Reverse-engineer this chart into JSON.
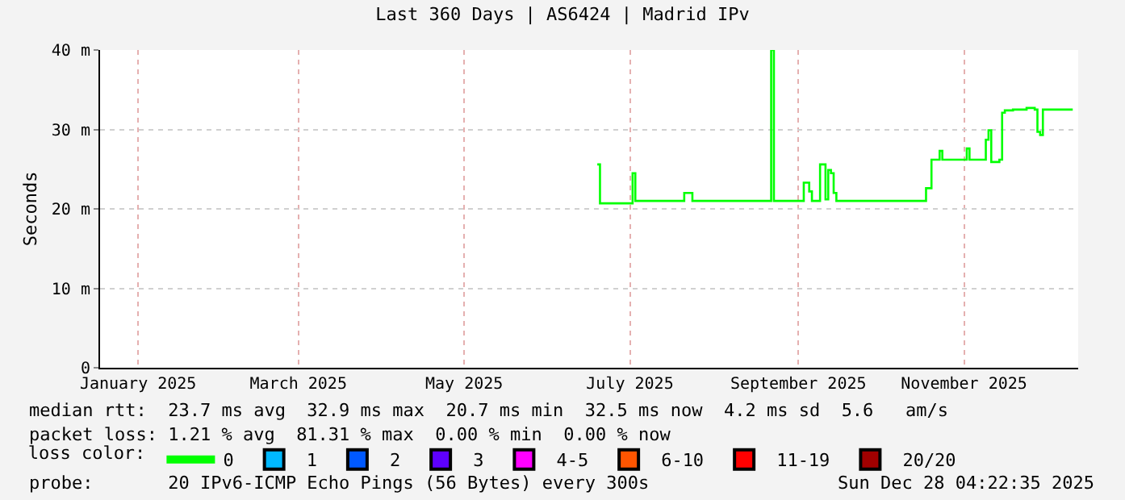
{
  "chart_data": {
    "type": "step",
    "title": "Last 360 Days | AS6424 | Madrid IPv",
    "ylabel": "Seconds",
    "x": [
      "2025-07-04",
      "2025-07-05",
      "2025-07-17",
      "2025-07-18",
      "2025-08-05",
      "2025-08-08",
      "2025-09-06",
      "2025-09-07",
      "2025-09-08",
      "2025-09-18",
      "2025-09-20",
      "2025-09-21",
      "2025-09-24",
      "2025-09-26",
      "2025-09-27",
      "2025-09-28",
      "2025-09-29",
      "2025-09-30",
      "2025-11-02",
      "2025-11-04",
      "2025-11-07",
      "2025-11-08",
      "2025-11-17",
      "2025-11-18",
      "2025-11-23",
      "2025-11-24",
      "2025-11-25",
      "2025-11-26",
      "2025-11-29",
      "2025-11-30",
      "2025-12-01",
      "2025-12-04",
      "2025-12-09",
      "2025-12-12",
      "2025-12-13",
      "2025-12-14",
      "2025-12-15",
      "2025-12-17",
      "2025-12-26"
    ],
    "series": [
      {
        "name": "0",
        "color": "#00ff00",
        "values": [
          25.6,
          20.7,
          24.5,
          21.0,
          22.0,
          21.0,
          40,
          21.0,
          21.0,
          23.3,
          22.2,
          21.0,
          25.6,
          21.2,
          24.9,
          24.5,
          22.0,
          21.0,
          22.6,
          26.2,
          27.3,
          26.2,
          27.6,
          26.2,
          26.2,
          28.7,
          29.9,
          25.9,
          26.2,
          32.1,
          32.4,
          32.5,
          32.7,
          32.5,
          29.7,
          29.3,
          32.5,
          32.5,
          32.5
        ]
      },
      {
        "name": "1",
        "color": "#00b8ff",
        "values": [
          null,
          null,
          null,
          null,
          null,
          null,
          null,
          null,
          null,
          null,
          null,
          null,
          null,
          null,
          null,
          null,
          null,
          null,
          null,
          null,
          null,
          null,
          null,
          null,
          null,
          null,
          null,
          null,
          null,
          null,
          null,
          null,
          null,
          null,
          null,
          null,
          null,
          null,
          null
        ]
      },
      {
        "name": "2",
        "color": "#0059ff",
        "values": [
          null,
          null,
          null,
          null,
          null,
          null,
          null,
          null,
          null,
          null,
          null,
          null,
          null,
          null,
          null,
          null,
          null,
          null,
          null,
          null,
          null,
          null,
          null,
          null,
          null,
          null,
          null,
          null,
          null,
          null,
          null,
          null,
          null,
          null,
          null,
          null,
          null,
          null,
          null
        ]
      },
      {
        "name": "3",
        "color": "#5e00ff",
        "values": [
          null,
          null,
          null,
          null,
          null,
          null,
          null,
          null,
          null,
          null,
          null,
          null,
          null,
          null,
          null,
          null,
          null,
          null,
          null,
          null,
          null,
          null,
          null,
          null,
          null,
          null,
          null,
          null,
          null,
          null,
          null,
          null,
          null,
          null,
          null,
          null,
          null,
          null,
          null
        ]
      },
      {
        "name": "4-5",
        "color": "#ff00ff",
        "values": [
          null,
          null,
          null,
          null,
          null,
          null,
          null,
          null,
          null,
          null,
          null,
          null,
          null,
          null,
          null,
          null,
          null,
          null,
          null,
          null,
          null,
          null,
          null,
          null,
          null,
          null,
          null,
          null,
          null,
          null,
          null,
          null,
          null,
          null,
          null,
          null,
          null,
          null,
          null
        ]
      },
      {
        "name": "6-10",
        "color": "#ff5500",
        "values": [
          null,
          null,
          null,
          null,
          null,
          null,
          null,
          null,
          null,
          null,
          null,
          null,
          null,
          null,
          null,
          null,
          null,
          null,
          null,
          null,
          null,
          null,
          null,
          null,
          null,
          null,
          null,
          null,
          null,
          null,
          null,
          null,
          null,
          null,
          null,
          null,
          null,
          null,
          null
        ]
      },
      {
        "name": "11-19",
        "color": "#ff0000",
        "values": [
          null,
          null,
          null,
          null,
          null,
          null,
          null,
          null,
          null,
          null,
          null,
          null,
          null,
          null,
          null,
          null,
          null,
          null,
          null,
          null,
          null,
          null,
          null,
          null,
          null,
          null,
          null,
          null,
          null,
          null,
          null,
          null,
          null,
          null,
          null,
          null,
          null,
          null,
          null
        ]
      },
      {
        "name": "20/20",
        "color": "#a10000",
        "values": [
          null,
          null,
          null,
          null,
          null,
          null,
          null,
          null,
          null,
          null,
          null,
          null,
          null,
          null,
          null,
          null,
          null,
          null,
          null,
          null,
          null,
          null,
          null,
          null,
          null,
          null,
          null,
          null,
          null,
          null,
          null,
          null,
          null,
          null,
          null,
          null,
          null,
          null,
          null
        ]
      }
    ],
    "legend_title": "loss color:",
    "legend": "bottom",
    "xlim": [
      "2025-01-02",
      "2025-12-28"
    ],
    "xticks": [
      {
        "value": "2025-01-16",
        "label": "January 2025"
      },
      {
        "value": "2025-03-16",
        "label": "March 2025"
      },
      {
        "value": "2025-05-16",
        "label": "May 2025"
      },
      {
        "value": "2025-07-16",
        "label": "July 2025"
      },
      {
        "value": "2025-09-16",
        "label": "September 2025"
      },
      {
        "value": "2025-11-16",
        "label": "November 2025"
      }
    ],
    "ylim": [
      0,
      40
    ],
    "yticks": [
      0,
      {
        "value": 10,
        "label": "10 m"
      },
      {
        "value": 20,
        "label": "20 m"
      },
      {
        "value": 30,
        "label": "30 m"
      },
      {
        "value": 40,
        "label": "40 m"
      }
    ],
    "grid": true,
    "marker": "none",
    "line_style": "solid",
    "annotations": [
      "median rtt:  23.7 ms avg  32.9 ms max  20.7 ms min  32.5 ms now  4.2 ms sd  5.6   am/s",
      "packet loss: 1.21 % avg  81.31 % max  0.00 % min  0.00 % now",
      "probe:       20 IPv6-ICMP Echo Pings (56 Bytes) every 300s",
      "Sun Dec 28 04:22:35 2025"
    ]
  }
}
